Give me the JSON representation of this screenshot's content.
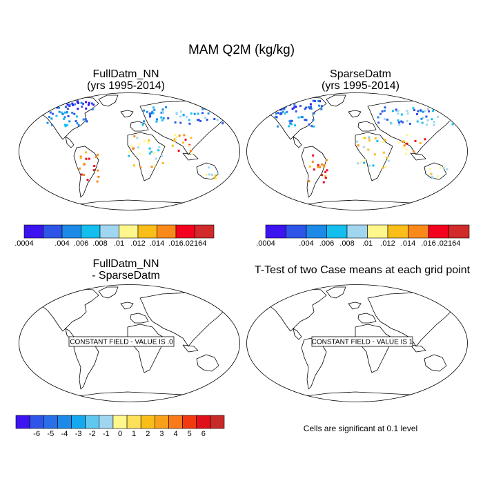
{
  "title": "MAM Q2M (kg/kg)",
  "panels": [
    {
      "title_lines": [
        "FullDatm_NN",
        "(yrs 1995-2014)"
      ]
    },
    {
      "title_lines": [
        "SparseDatm",
        "(yrs 1995-2014)"
      ]
    },
    {
      "title_lines": [
        "FullDatm_NN",
        "- SparseDatm"
      ],
      "constant_label": "CONSTANT FIELD - VALUE IS .0"
    },
    {
      "title_lines": [
        "T-Test of two Case means at each grid point"
      ],
      "constant_label": "CONSTANT FIELD - VALUE IS 1"
    }
  ],
  "colorbar_q2m": {
    "colors": [
      "#3c14f0",
      "#2e55e8",
      "#1e8ae8",
      "#14bff0",
      "#a0d6f0",
      "#fff68c",
      "#f9be1a",
      "#f98a1a",
      "#f2021e",
      "#d02a2a"
    ],
    "labels": [
      ".0004",
      ".004",
      ".006",
      ".008",
      ".01",
      ".012",
      ".014",
      ".016",
      ".02164"
    ]
  },
  "colorbar_diff": {
    "colors": [
      "#3c14f0",
      "#2e55e8",
      "#2a6ee8",
      "#1e8ae8",
      "#14a8f0",
      "#5ec8f0",
      "#a0d6f0",
      "#fff68c",
      "#fbe05a",
      "#f9be1a",
      "#f9a01a",
      "#f97a1a",
      "#f23a10",
      "#e0101a",
      "#c82a2a"
    ],
    "labels": [
      "-6",
      "-5",
      "-4",
      "-3",
      "-2",
      "-1",
      "0",
      "1",
      "2",
      "3",
      "4",
      "5",
      "6"
    ]
  },
  "significance_note": "Cells are significant at 0.1 level"
}
